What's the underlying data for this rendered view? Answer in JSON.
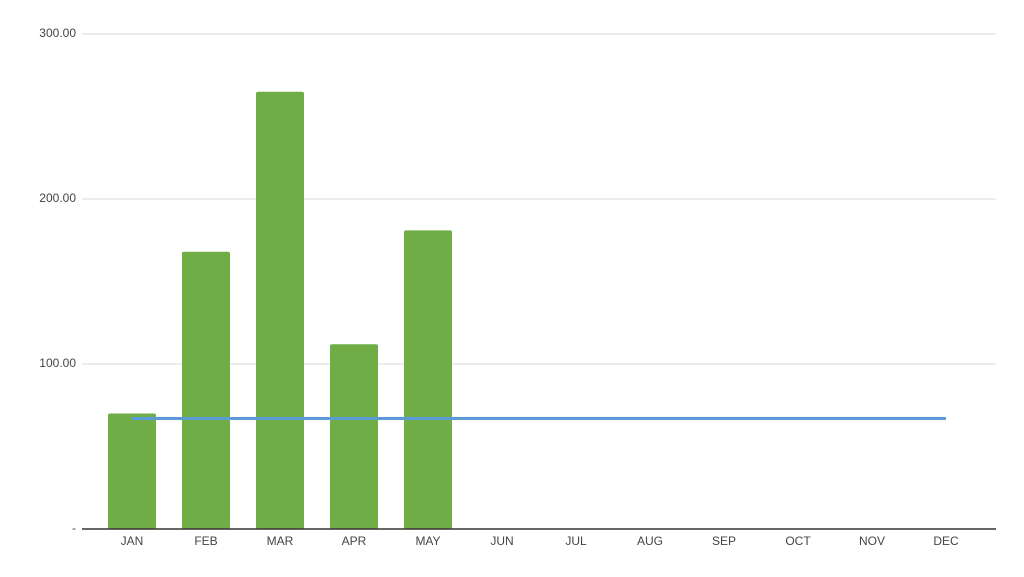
{
  "chart_data": {
    "type": "bar",
    "categories": [
      "JAN",
      "FEB",
      "MAR",
      "APR",
      "MAY",
      "JUN",
      "JUL",
      "AUG",
      "SEP",
      "OCT",
      "NOV",
      "DEC"
    ],
    "series": [
      {
        "type": "bar",
        "color": "#70ad47",
        "values": [
          70,
          168,
          265,
          112,
          181,
          null,
          null,
          null,
          null,
          null,
          null,
          null
        ]
      },
      {
        "type": "line",
        "color": "#5b9bd5",
        "values": [
          67,
          67,
          67,
          67,
          67,
          67,
          67,
          67,
          67,
          67,
          67,
          67
        ]
      }
    ],
    "ylim": [
      0,
      300
    ],
    "yticks": [
      {
        "value": 0,
        "label": "-"
      },
      {
        "value": 100,
        "label": "100.00"
      },
      {
        "value": 200,
        "label": "200.00"
      },
      {
        "value": 300,
        "label": "300.00"
      }
    ],
    "grid": true
  }
}
